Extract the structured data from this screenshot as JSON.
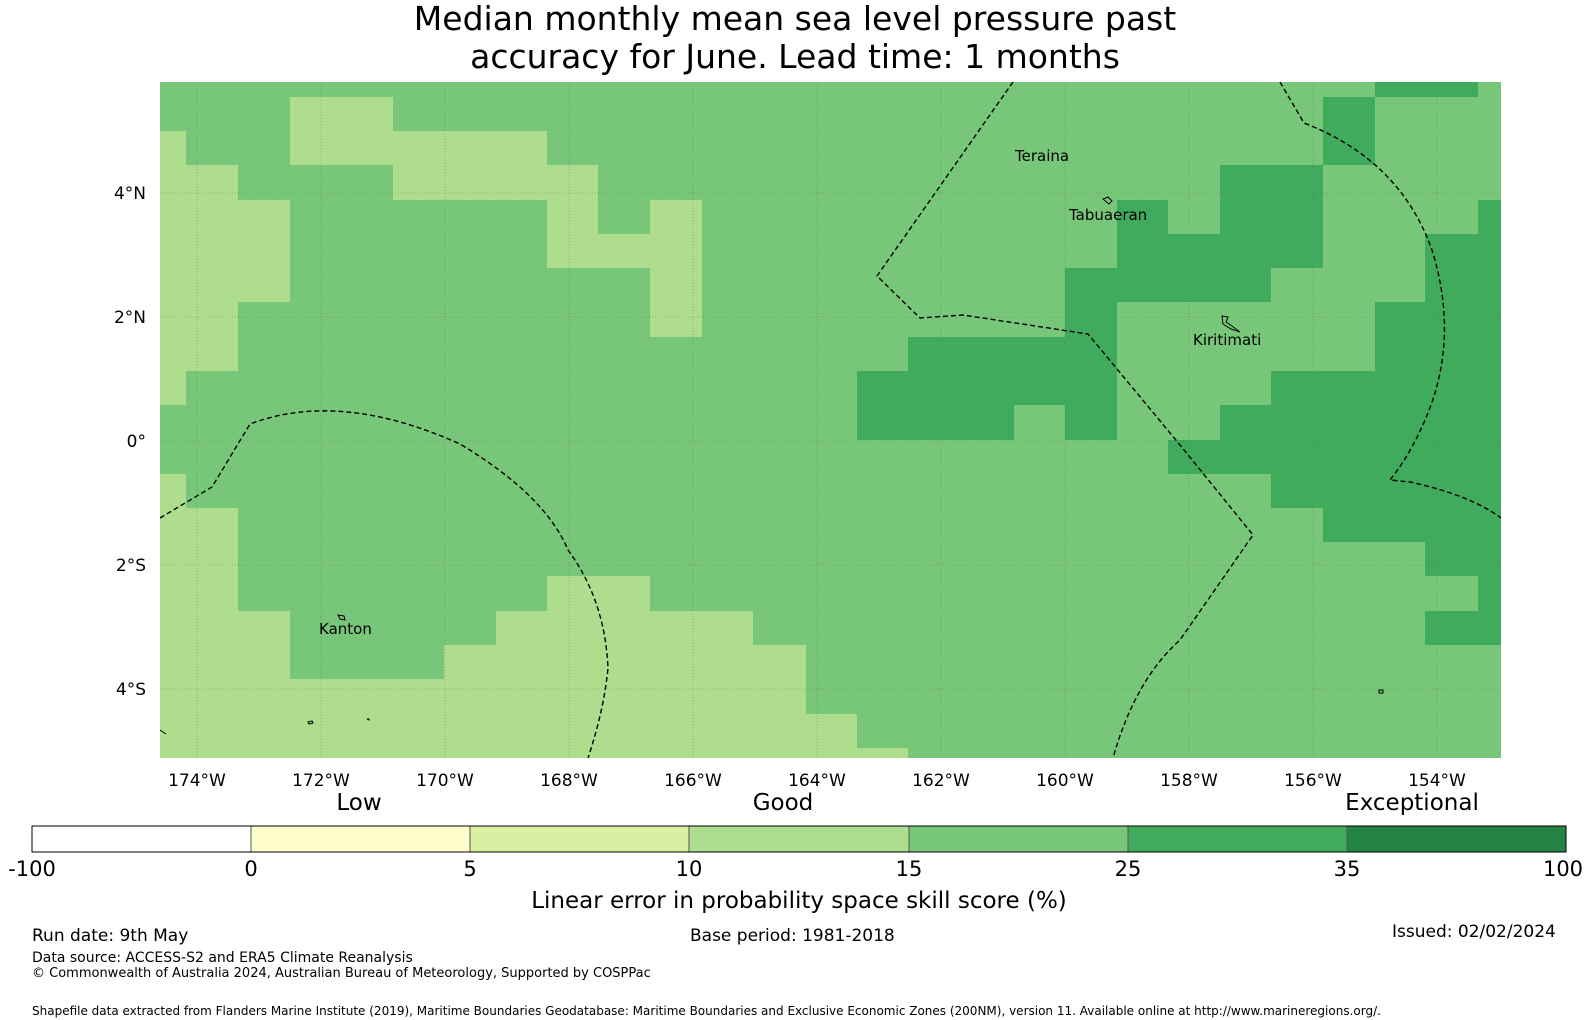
{
  "title": {
    "line1": "Median monthly mean sea level pressure past",
    "line2": "accuracy for June. Lead time: 1 months"
  },
  "map": {
    "lon_labels": [
      "174°W",
      "172°W",
      "170°W",
      "168°W",
      "166°W",
      "164°W",
      "162°W",
      "160°W",
      "158°W",
      "156°W",
      "154°W"
    ],
    "lat_labels": [
      "4°N",
      "2°N",
      "0°",
      "2°S",
      "4°S"
    ],
    "places": [
      {
        "name": "Teraina",
        "label": "Teraina"
      },
      {
        "name": "Tabuaeran",
        "label": "Tabuaeran"
      },
      {
        "name": "Kiritimati",
        "label": "Kiritimati"
      },
      {
        "name": "Kanton",
        "label": "Kanton"
      }
    ],
    "colors": {
      "c5": "#aedd8e",
      "c15": "#78c679",
      "c25": "#41ab5d",
      "eez_line": "#000000",
      "grid_line": "#3a6b3a"
    }
  },
  "legend": {
    "categories": [
      {
        "label": "Low"
      },
      {
        "label": "Good"
      },
      {
        "label": "Exceptional"
      }
    ],
    "bins": [
      {
        "color": "#ffffff"
      },
      {
        "color": "#ffffcc"
      },
      {
        "color": "#d9f0a3"
      },
      {
        "color": "#addd8e"
      },
      {
        "color": "#78c679"
      },
      {
        "color": "#41ab5d"
      },
      {
        "color": "#238443"
      }
    ],
    "ticks": [
      "-100",
      "0",
      "5",
      "10",
      "15",
      "25",
      "35",
      "100"
    ],
    "axis_label": "Linear error in probability space skill score (%)"
  },
  "footer": {
    "run_date": "Run date: 9th May",
    "base_period": "Base period: 1981-2018",
    "issued": "Issued: 02/02/2024",
    "data_source": "Data source: ACCESS-S2 and ERA5 Climate Reanalysis",
    "copyright": "© Commonwealth of Australia 2024, Australian Bureau of Meteorology, Supported by COSPPac",
    "shapefile": "Shapefile data extracted from Flanders Marine Institute (2019), Maritime Boundaries Geodatabase: Maritime Boundaries and Exclusive Economic Zones (200NM), version 11. Available online at http://www.marineregions.org/."
  }
}
